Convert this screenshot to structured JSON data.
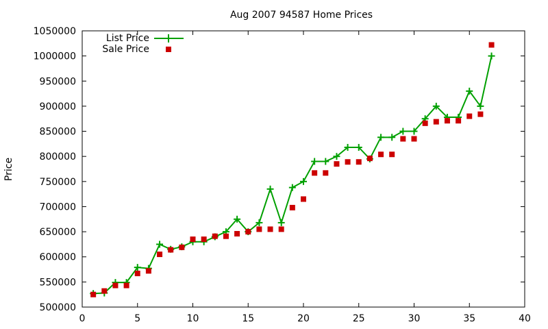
{
  "chart_data": {
    "type": "line",
    "title": "Aug 2007 94587 Home Prices",
    "xlabel": "",
    "ylabel": "Price",
    "xlim": [
      0,
      40
    ],
    "ylim": [
      500000,
      1050000
    ],
    "xticks": [
      0,
      5,
      10,
      15,
      20,
      25,
      30,
      35,
      40
    ],
    "yticks": [
      500000,
      550000,
      600000,
      650000,
      700000,
      750000,
      800000,
      850000,
      900000,
      950000,
      1000000,
      1050000
    ],
    "grid": false,
    "legend_position": "top-left",
    "series": [
      {
        "name": "List Price",
        "style": "line+plus",
        "color": "#00a000",
        "x": [
          1,
          2,
          3,
          4,
          5,
          6,
          7,
          8,
          9,
          10,
          11,
          12,
          13,
          14,
          15,
          16,
          17,
          18,
          19,
          20,
          21,
          22,
          23,
          24,
          25,
          26,
          27,
          28,
          29,
          30,
          31,
          32,
          33,
          34,
          35,
          36,
          37
        ],
        "y": [
          527000,
          528000,
          549000,
          549000,
          579000,
          577000,
          625000,
          615000,
          620000,
          630000,
          630000,
          640000,
          650000,
          675000,
          650000,
          668000,
          735000,
          668000,
          738000,
          750000,
          790000,
          790000,
          800000,
          818000,
          818000,
          795000,
          838000,
          838000,
          850000,
          850000,
          875000,
          900000,
          878000,
          878000,
          930000,
          900000,
          1000000
        ]
      },
      {
        "name": "Sale Price",
        "style": "square",
        "color": "#cc0000",
        "x": [
          1,
          2,
          3,
          4,
          5,
          6,
          7,
          8,
          9,
          10,
          11,
          12,
          13,
          14,
          15,
          16,
          17,
          18,
          19,
          20,
          21,
          22,
          23,
          24,
          25,
          26,
          27,
          28,
          29,
          30,
          31,
          32,
          33,
          34,
          35,
          36,
          37
        ],
        "y": [
          525000,
          532000,
          543000,
          543000,
          567000,
          572000,
          605000,
          614000,
          619000,
          635000,
          635000,
          641000,
          641000,
          646000,
          650000,
          655000,
          655000,
          655000,
          698000,
          715000,
          767000,
          767000,
          785000,
          789000,
          789000,
          796000,
          804000,
          804000,
          835000,
          835000,
          866000,
          869000,
          871000,
          871000,
          880000,
          884000,
          1022000
        ]
      }
    ]
  }
}
